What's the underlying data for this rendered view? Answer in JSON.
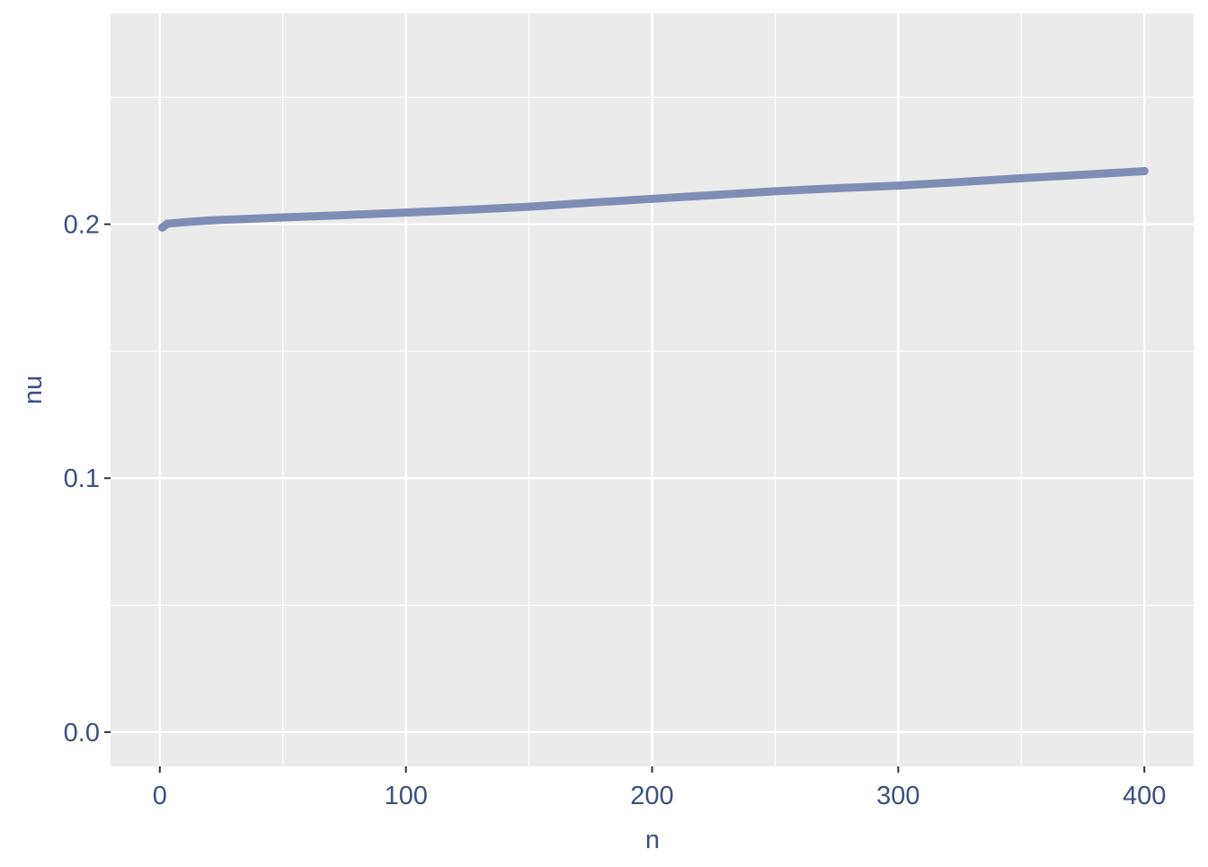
{
  "chart_data": {
    "type": "line",
    "title": "",
    "xlabel": "n",
    "ylabel": "nu",
    "xlim": [
      -20,
      420
    ],
    "ylim": [
      -0.0135,
      0.283
    ],
    "x_ticks": [
      0,
      100,
      200,
      300,
      400
    ],
    "x_tick_labels": [
      "0",
      "100",
      "200",
      "300",
      "400"
    ],
    "y_ticks": [
      0.0,
      0.1,
      0.2
    ],
    "y_tick_labels": [
      "0.0",
      "0.1",
      "0.2"
    ],
    "grid": true,
    "colors": {
      "series": "#7f8db5",
      "panel": "#ebebeb",
      "grid": "#ffffff",
      "text": "#3b4f82"
    },
    "series": [
      {
        "x": [
          1,
          3,
          10,
          20,
          50,
          75,
          100,
          125,
          150,
          175,
          200,
          225,
          250,
          275,
          300,
          325,
          350,
          375,
          400
        ],
        "values": [
          0.1987,
          0.2002,
          0.2008,
          0.2015,
          0.2027,
          0.2036,
          0.2046,
          0.2057,
          0.2069,
          0.2085,
          0.21,
          0.2115,
          0.213,
          0.2142,
          0.2152,
          0.2166,
          0.2181,
          0.2195,
          0.2209
        ]
      }
    ]
  }
}
